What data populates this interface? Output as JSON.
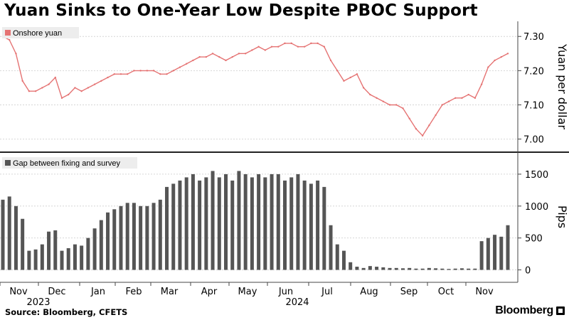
{
  "title": "Yuan Sinks to One-Year Low Despite PBOC Support",
  "source": "Source: Bloomberg, CFETS",
  "brand": "Bloomberg",
  "colors": {
    "yuan": "#e57373",
    "gap": "#555555",
    "grid": "#d6d6d6",
    "axis": "#444444"
  },
  "chart_data": [
    {
      "type": "line",
      "legend": "Onshore yuan",
      "ylabel": "Yuan per dollar",
      "ylim": [
        6.97,
        7.34
      ],
      "yticks": [
        "7.00",
        "7.10",
        "7.20",
        "7.30"
      ],
      "grid": true,
      "legend_position": "top-left",
      "x_months": [
        "Nov",
        "Dec",
        "Jan",
        "Feb",
        "Mar",
        "Apr",
        "May",
        "Jun",
        "Jul",
        "Aug",
        "Sep",
        "Oct",
        "Nov"
      ],
      "x_years": [
        "2023",
        "2024"
      ],
      "x": [
        0,
        5,
        10,
        15,
        20,
        25,
        30,
        35,
        40,
        45,
        50,
        55,
        60,
        65,
        70,
        75,
        80,
        85,
        90,
        95,
        100,
        105,
        110,
        115,
        120,
        125,
        130,
        135,
        140,
        145,
        150,
        155,
        160,
        165,
        170,
        175,
        180,
        185,
        190,
        195,
        200,
        205,
        210,
        215,
        220,
        225,
        230,
        235,
        240,
        245,
        250,
        255,
        260,
        265,
        270,
        275,
        280,
        285,
        290,
        295,
        300,
        305,
        310,
        315,
        320,
        325,
        330,
        335,
        340,
        345,
        350,
        355,
        360,
        365,
        370,
        375,
        380,
        385
      ],
      "values": [
        7.3,
        7.29,
        7.25,
        7.17,
        7.14,
        7.14,
        7.15,
        7.16,
        7.18,
        7.12,
        7.13,
        7.15,
        7.14,
        7.15,
        7.16,
        7.17,
        7.18,
        7.19,
        7.19,
        7.19,
        7.2,
        7.2,
        7.2,
        7.2,
        7.19,
        7.19,
        7.2,
        7.21,
        7.22,
        7.23,
        7.24,
        7.24,
        7.25,
        7.24,
        7.23,
        7.24,
        7.25,
        7.25,
        7.26,
        7.27,
        7.26,
        7.27,
        7.27,
        7.28,
        7.28,
        7.27,
        7.27,
        7.28,
        7.28,
        7.27,
        7.23,
        7.2,
        7.17,
        7.18,
        7.19,
        7.15,
        7.13,
        7.12,
        7.11,
        7.1,
        7.1,
        7.09,
        7.06,
        7.03,
        7.01,
        7.04,
        7.07,
        7.1,
        7.11,
        7.12,
        7.12,
        7.13,
        7.12,
        7.16,
        7.21,
        7.23,
        7.24,
        7.25
      ]
    },
    {
      "type": "bar",
      "legend": "Gap between fixing and survey",
      "ylabel": "Pips",
      "ylim": [
        -150,
        1800
      ],
      "yticks": [
        "0",
        "500",
        "1000",
        "1500"
      ],
      "grid": true,
      "legend_position": "top-left",
      "x": [
        0,
        5,
        10,
        15,
        20,
        25,
        30,
        35,
        40,
        45,
        50,
        55,
        60,
        65,
        70,
        75,
        80,
        85,
        90,
        95,
        100,
        105,
        110,
        115,
        120,
        125,
        130,
        135,
        140,
        145,
        150,
        155,
        160,
        165,
        170,
        175,
        180,
        185,
        190,
        195,
        200,
        205,
        210,
        215,
        220,
        225,
        230,
        235,
        240,
        245,
        250,
        255,
        260,
        265,
        270,
        275,
        280,
        285,
        290,
        295,
        300,
        305,
        310,
        315,
        320,
        325,
        330,
        335,
        340,
        345,
        350,
        355,
        360,
        365,
        370,
        375,
        380,
        385
      ],
      "values": [
        1100,
        1150,
        1000,
        800,
        300,
        320,
        400,
        600,
        620,
        300,
        340,
        400,
        380,
        500,
        650,
        780,
        900,
        950,
        1000,
        1050,
        1050,
        1000,
        1000,
        1050,
        1100,
        1300,
        1350,
        1400,
        1450,
        1500,
        1400,
        1450,
        1550,
        1450,
        1500,
        1400,
        1550,
        1500,
        1450,
        1500,
        1450,
        1500,
        1500,
        1400,
        1450,
        1500,
        1400,
        1350,
        1400,
        1300,
        700,
        400,
        300,
        120,
        50,
        30,
        60,
        50,
        40,
        30,
        30,
        25,
        30,
        20,
        20,
        30,
        25,
        20,
        15,
        20,
        25,
        20,
        20,
        450,
        500,
        550,
        520,
        700
      ]
    }
  ]
}
